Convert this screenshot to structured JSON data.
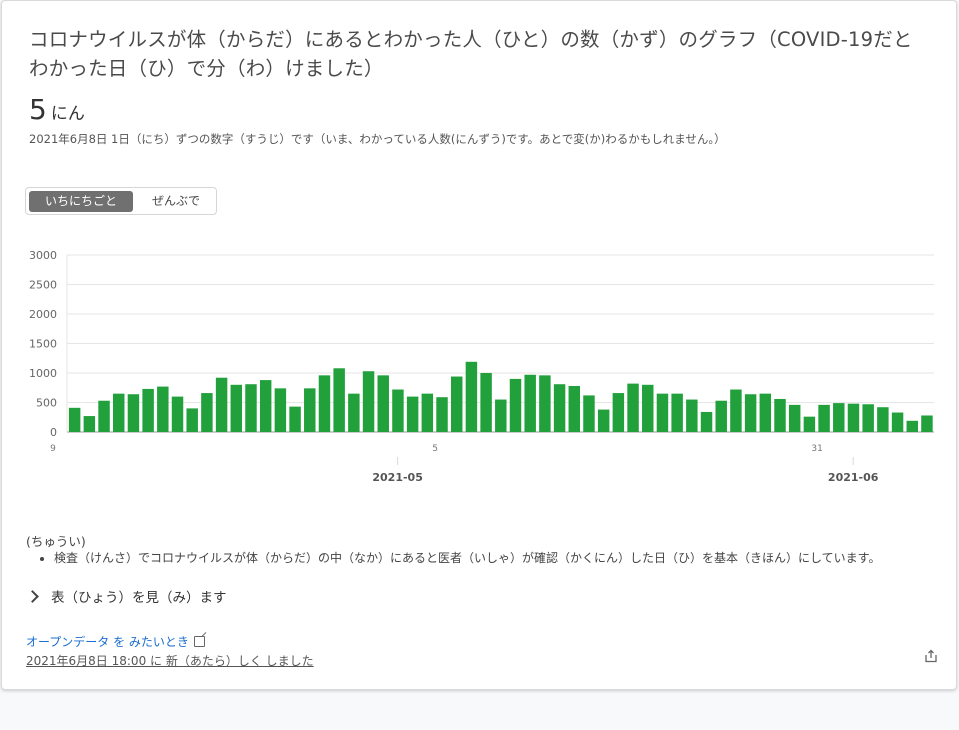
{
  "card": {
    "title": "コロナウイルスが体（からだ）にあるとわかった人（ひと）の数（かず）のグラフ（COVID-19だとわかった日（ひ）で分（わ）けました）",
    "value": "5",
    "value_unit": "にん",
    "note": "2021年6月8日 1日（にち）ずつの数字（すうじ）です（いま、わかっている人数(にんずう)です。あとで変(か)わるかもしれません。）"
  },
  "toggle": {
    "daily": "いちにちごと",
    "cumulative": "ぜんぶで"
  },
  "chart_data": {
    "type": "bar",
    "color": "#22a03c",
    "ylim": [
      0,
      3000
    ],
    "yticks": [
      0,
      500,
      1000,
      1500,
      2000,
      2500,
      3000
    ],
    "day_labels": [
      {
        "index": 0,
        "label": "9"
      },
      {
        "index": 26,
        "label": "5"
      },
      {
        "index": 52,
        "label": "31"
      }
    ],
    "month_labels": [
      {
        "index": 22,
        "label": "2021-05"
      },
      {
        "index": 53,
        "label": "2021-06"
      }
    ],
    "values": [
      410,
      270,
      530,
      650,
      640,
      730,
      770,
      600,
      400,
      660,
      920,
      800,
      810,
      880,
      740,
      430,
      740,
      960,
      1080,
      650,
      1030,
      960,
      720,
      600,
      650,
      590,
      940,
      1190,
      1000,
      550,
      900,
      970,
      960,
      810,
      780,
      620,
      380,
      660,
      820,
      800,
      650,
      650,
      550,
      340,
      530,
      720,
      640,
      650,
      560,
      460,
      260,
      460,
      490,
      480,
      470,
      420,
      330,
      190,
      280
    ]
  },
  "caution": {
    "title": "(ちゅうい)",
    "items": [
      "検査（けんさ）でコロナウイルスが体（からだ）の中（なか）にあると医者（いしゃ）が確認（かくにん）した日（ひ）を基本（きほん）にしています。"
    ]
  },
  "table_toggle": "表（ひょう）を見（み）ます",
  "footer": {
    "open_data": "オープンデータ を みたいとき",
    "updated": "2021年6月8日 18:00 に 新（あたら）しく しました"
  },
  "icons": [
    "chevron-right-icon",
    "external-link-icon",
    "share-icon"
  ]
}
